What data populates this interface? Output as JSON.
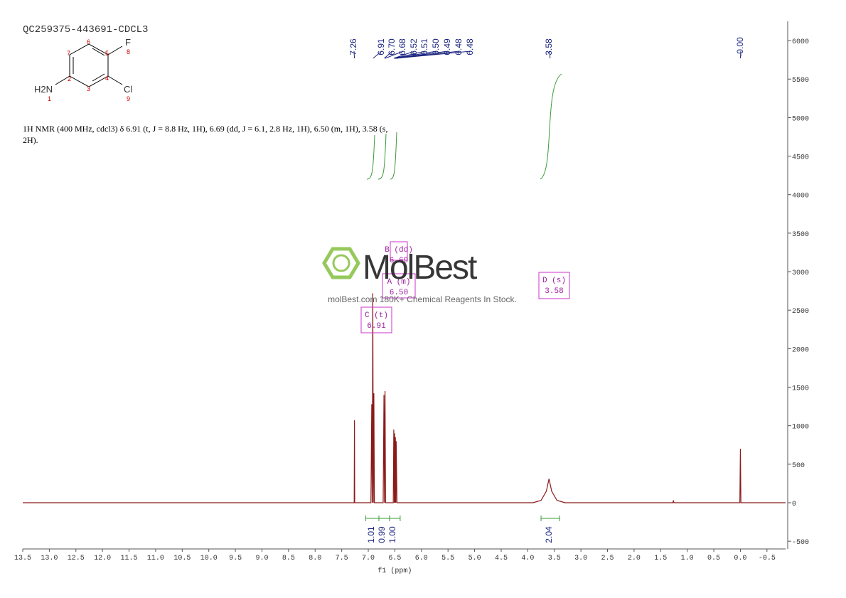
{
  "chart_data": {
    "type": "nmr",
    "title": "QC259375-443691-CDCL3",
    "description": [
      "1H NMR (400 MHz, cdcl3) δ 6.91 (t, J = 8.8 Hz, 1H), 6.69 (dd, J = 6.1, 2.8 Hz, 1H), 6.50 (m, 1H), 3.58 (s,",
      "2H)."
    ],
    "molecule": {
      "atoms": [
        "F",
        "8",
        "Cl",
        "9",
        "H2N",
        "1",
        "2",
        "3",
        "4",
        "5",
        "6",
        "7"
      ]
    },
    "x_label": "f1 (ppm)",
    "color": "#8b1a1a",
    "xlim": [
      13.5,
      -0.85
    ],
    "ylim": [
      -600,
      6250
    ],
    "xticks": [
      13.5,
      {
        "value": 13,
        "label": "13.0"
      },
      12.5,
      {
        "value": 12,
        "label": "12.0"
      },
      11.5,
      {
        "value": 11,
        "label": "11.0"
      },
      10.5,
      {
        "value": 10,
        "label": "10.0"
      },
      9.5,
      {
        "value": 9,
        "label": "9.0"
      },
      8.5,
      {
        "value": 8,
        "label": "8.0"
      },
      7.5,
      {
        "value": 7,
        "label": "7.0"
      },
      6.5,
      {
        "value": 6,
        "label": "6.0"
      },
      5.5,
      {
        "value": 5,
        "label": "5.0"
      },
      4.5,
      {
        "value": 4,
        "label": "4.0"
      },
      3.5,
      {
        "value": 3,
        "label": "3.0"
      },
      2.5,
      {
        "value": 2,
        "label": "2.0"
      },
      1.5,
      {
        "value": 1,
        "label": "1.0"
      },
      0.5,
      {
        "value": 0,
        "label": "0.0"
      },
      -0.5
    ],
    "yticks": [
      -500,
      0,
      500,
      1000,
      1500,
      2000,
      2500,
      3000,
      3500,
      4000,
      4500,
      5000,
      5500,
      6000
    ],
    "x": [
      13.5,
      7.3,
      7.265,
      7.26,
      7.255,
      6.95,
      6.935,
      6.925,
      6.915,
      6.905,
      6.895,
      6.885,
      6.72,
      6.705,
      6.695,
      6.685,
      6.675,
      6.53,
      6.52,
      6.51,
      6.505,
      6.495,
      6.49,
      6.48,
      6.475,
      6.46,
      3.9,
      3.75,
      3.65,
      3.6,
      3.55,
      3.45,
      3.3,
      1.27,
      1.26,
      1.25,
      0.01,
      0,
      -0.01,
      -0.85
    ],
    "values": [
      0,
      0,
      0,
      1070,
      0,
      0,
      1280,
      0,
      2720,
      0,
      1420,
      0,
      0,
      1400,
      0,
      1450,
      0,
      0,
      950,
      0,
      900,
      0,
      850,
      0,
      800,
      0,
      0,
      30,
      150,
      310,
      150,
      30,
      0,
      0,
      30,
      0,
      0,
      700,
      0,
      0
    ],
    "peak_labels": [
      "7.26",
      "6.91",
      "6.70",
      "6.68",
      "6.52",
      "6.51",
      "6.50",
      "6.49",
      "6.48",
      "6.48",
      "3.58",
      "-0.00"
    ],
    "integrals": [
      "1.01",
      "0.99",
      "1.00",
      "2.04"
    ],
    "annotations": [
      [
        "B (dd)",
        "6.69"
      ],
      [
        "A (m)",
        "6.50"
      ],
      [
        "C (t)",
        "6.91"
      ],
      [
        "D (s)",
        "3.58"
      ]
    ],
    "watermark": {
      "brand": "MolBest",
      "tagline": "molBest.com 180K+ Chemical Reagents In Stock."
    }
  }
}
